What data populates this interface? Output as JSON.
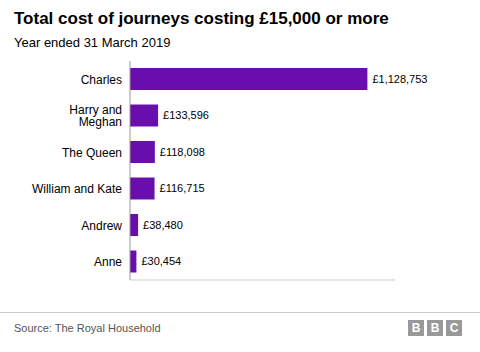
{
  "chart_data": {
    "type": "bar",
    "orientation": "horizontal",
    "title": "Total cost of journeys costing £15,000 or more",
    "subtitle": "Year ended 31 March 2019",
    "annotations": [
      "Source: The Royal Household",
      "BBC"
    ],
    "categories": [
      "Charles",
      "Harry and Meghan",
      "The Queen",
      "William and Kate",
      "Andrew",
      "Anne"
    ],
    "values": [
      1128753,
      133596,
      118098,
      116715,
      38480,
      30454
    ],
    "value_labels": [
      "£1,128,753",
      "£133,596",
      "£118,098",
      "£116,715",
      "£38,480",
      "£30,454"
    ],
    "data_labels": true,
    "color": "#6a0dad",
    "xlim": [
      0,
      1260000
    ],
    "grid": false,
    "tick_labels": "y"
  }
}
